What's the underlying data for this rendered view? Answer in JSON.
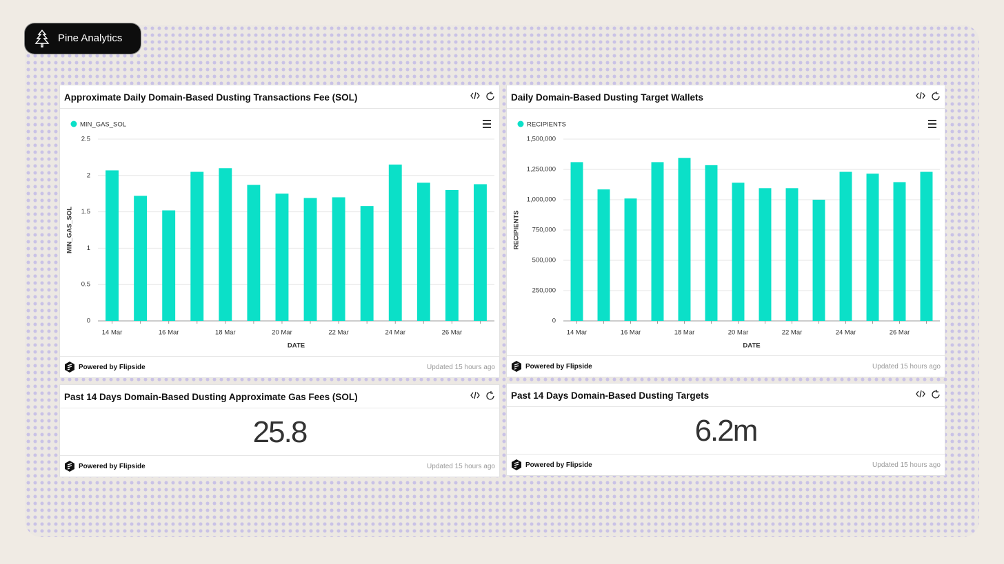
{
  "brand": {
    "name": "Pine Analytics"
  },
  "chart_data": [
    {
      "type": "bar",
      "title": "Approximate Daily Domain-Based Dusting Transactions Fee (SOL)",
      "categories": [
        "14 Mar",
        null,
        "16 Mar",
        null,
        "18 Mar",
        null,
        "20 Mar",
        null,
        "22 Mar",
        null,
        "24 Mar",
        null,
        "26 Mar",
        null
      ],
      "series": [
        {
          "name": "MIN_GAS_SOL",
          "color": "#0be0c8",
          "values": [
            2.07,
            1.72,
            1.52,
            2.05,
            2.1,
            1.87,
            1.75,
            1.69,
            1.7,
            1.58,
            2.15,
            1.9,
            1.8,
            1.88
          ]
        }
      ],
      "xlabel": "DATE",
      "ylabel": "MIN_GAS_SOL",
      "ylim": [
        0,
        2.5
      ],
      "yticks": [
        0,
        0.5,
        1,
        1.5,
        2,
        2.5
      ],
      "grid": true,
      "footer": {
        "powered": "Powered by Flipside",
        "updated": "Updated 15 hours ago"
      }
    },
    {
      "type": "bar",
      "title": "Daily Domain-Based Dusting Target Wallets",
      "categories": [
        "14 Mar",
        null,
        "16 Mar",
        null,
        "18 Mar",
        null,
        "20 Mar",
        null,
        "22 Mar",
        null,
        "24 Mar",
        null,
        "26 Mar",
        null
      ],
      "series": [
        {
          "name": "RECIPIENTS",
          "color": "#0be0c8",
          "values": [
            1310000,
            1085000,
            1010000,
            1310000,
            1345000,
            1285000,
            1140000,
            1095000,
            1095000,
            1000000,
            1230000,
            1215000,
            1145000,
            1230000
          ]
        }
      ],
      "xlabel": "DATE",
      "ylabel": "RECIPIENTS",
      "ylim": [
        0,
        1500000
      ],
      "yticks": [
        0,
        {
          "value": 250000,
          "label": "250,000"
        },
        {
          "value": 500000,
          "label": "500,000"
        },
        {
          "value": 750000,
          "label": "750,000"
        },
        {
          "value": 1000000,
          "label": "1,000,000"
        },
        {
          "value": 1250000,
          "label": "1,250,000"
        },
        {
          "value": 1500000,
          "label": "1,500,000"
        }
      ],
      "grid": true,
      "footer": {
        "powered": "Powered by Flipside",
        "updated": "Updated 15 hours ago"
      }
    }
  ],
  "stats": [
    {
      "title": "Past 14 Days Domain-Based Dusting Approximate Gas Fees (SOL)",
      "value": "25.8",
      "footer": {
        "powered": "Powered by Flipside",
        "updated": "Updated 15 hours ago"
      }
    },
    {
      "title": "Past 14 Days Domain-Based Dusting Targets",
      "value": "6.2m",
      "footer": {
        "powered": "Powered by Flipside",
        "updated": "Updated 15 hours ago"
      }
    }
  ]
}
